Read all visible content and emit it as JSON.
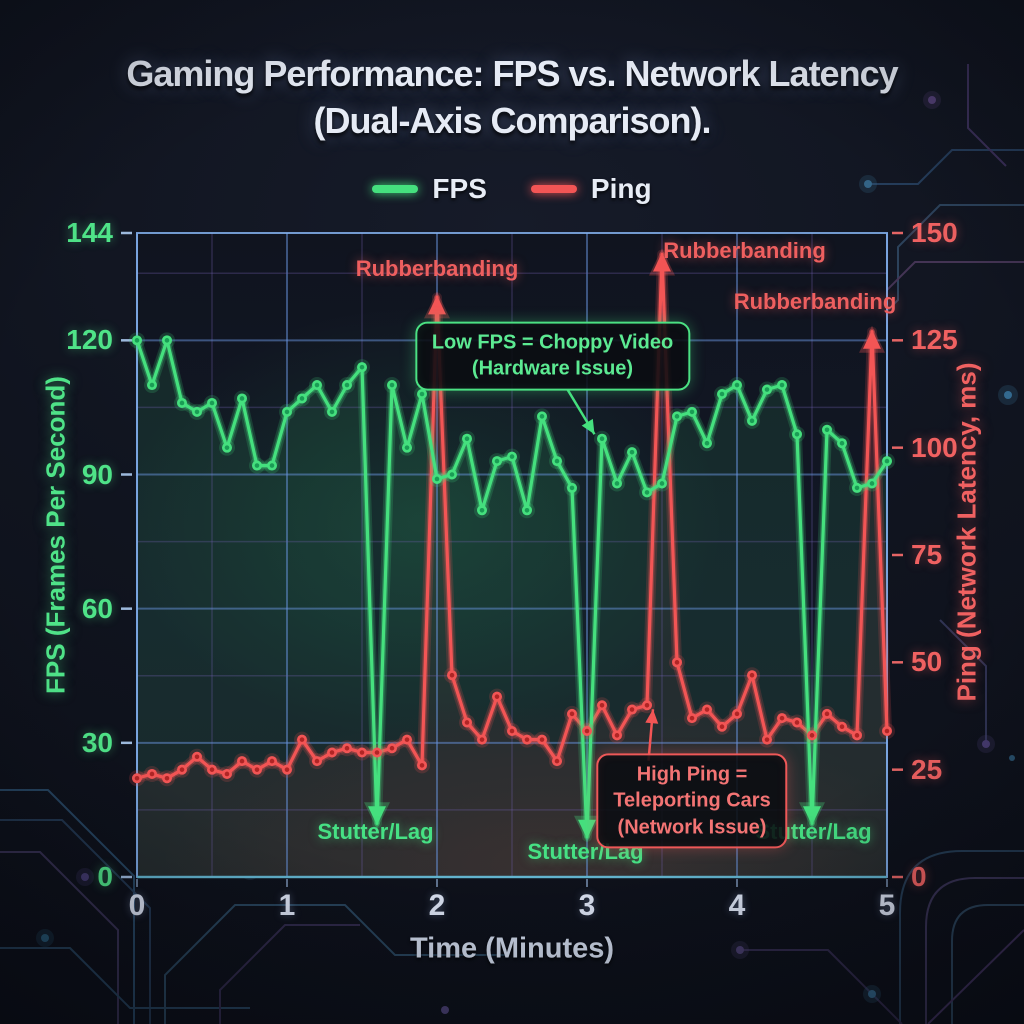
{
  "title": {
    "line1": "Gaming Performance: FPS vs. Network Latency",
    "line2": "(Dual-Axis Comparison)."
  },
  "legend": [
    {
      "label": "FPS",
      "color": "#45e07e"
    },
    {
      "label": "Ping",
      "color": "#f25555"
    }
  ],
  "colors": {
    "fps": "#45e07e",
    "fps_dark": "#1a9d55",
    "ping": "#f25555",
    "ping_dark": "#b02525",
    "grid_major": "rgba(104,148,222,0.50)",
    "grid_minor": "rgba(112,96,176,0.30)",
    "frame": "rgba(132,178,238,0.85)",
    "frame_bottom": "rgba(96,182,205,0.9)",
    "left_tick_dash": "#9db9dd",
    "right_tick_dash": "#e56565"
  },
  "chart_data": {
    "type": "line",
    "dual_axis": true,
    "title": "Gaming Performance: FPS vs. Network Latency (Dual-Axis Comparison).",
    "xlabel": "Time (Minutes)",
    "x_range": [
      0,
      5
    ],
    "x_ticks": [
      0,
      1,
      2,
      3,
      4,
      5
    ],
    "grid": {
      "x_minor_step": 0.5,
      "y_minor_step_left": 15
    },
    "left_axis": {
      "label": "FPS (Frames Per Second)",
      "ticks": [
        0,
        30,
        60,
        90,
        120,
        144
      ],
      "range": [
        0,
        144
      ],
      "color": "#45e07e"
    },
    "right_axis": {
      "label": "Ping (Network Latency, ms)",
      "ticks": [
        0,
        25,
        50,
        75,
        100,
        125,
        150
      ],
      "range": [
        0,
        150
      ],
      "color": "#f25555"
    },
    "x": [
      0,
      0.1,
      0.2,
      0.3,
      0.4,
      0.5,
      0.6,
      0.7,
      0.8,
      0.9,
      1,
      1.1,
      1.2,
      1.3,
      1.4,
      1.5,
      1.6,
      1.7,
      1.8,
      1.9,
      2,
      2.1,
      2.2,
      2.3,
      2.4,
      2.5,
      2.6,
      2.7,
      2.8,
      2.9,
      3,
      3.1,
      3.2,
      3.3,
      3.4,
      3.5,
      3.6,
      3.7,
      3.8,
      3.9,
      4,
      4.1,
      4.2,
      4.3,
      4.4,
      4.5,
      4.6,
      4.7,
      4.8,
      4.9,
      5
    ],
    "series": [
      {
        "name": "FPS",
        "axis": "left",
        "color": "#45e07e",
        "values": [
          120,
          110,
          120,
          106,
          104,
          106,
          96,
          107,
          92,
          92,
          104,
          107,
          110,
          104,
          110,
          114,
          12,
          110,
          96,
          108,
          89,
          90,
          98,
          82,
          93,
          94,
          82,
          103,
          93,
          87,
          9,
          98,
          88,
          95,
          86,
          88,
          103,
          104,
          97,
          108,
          110,
          102,
          109,
          110,
          99,
          12,
          100,
          97,
          87,
          88,
          93
        ],
        "arrows": [
          {
            "x": 1.6,
            "dir": "down"
          },
          {
            "x": 3,
            "dir": "down"
          },
          {
            "x": 4.5,
            "dir": "down"
          }
        ]
      },
      {
        "name": "Ping",
        "axis": "right",
        "color": "#f25555",
        "values": [
          23,
          24,
          23,
          25,
          28,
          25,
          24,
          27,
          25,
          27,
          25,
          32,
          27,
          29,
          30,
          29,
          29,
          30,
          32,
          26,
          135,
          47,
          36,
          32,
          42,
          34,
          32,
          32,
          27,
          38,
          34,
          40,
          33,
          39,
          40,
          145,
          50,
          37,
          39,
          35,
          38,
          47,
          32,
          37,
          36,
          33,
          38,
          35,
          33,
          127,
          34
        ],
        "arrows": [
          {
            "x": 2,
            "dir": "up"
          },
          {
            "x": 3.5,
            "dir": "up"
          },
          {
            "x": 4.9,
            "dir": "up"
          }
        ]
      }
    ],
    "annotations": [
      {
        "kind": "label",
        "text": "Rubberbanding",
        "palette": "ping",
        "x": 2.0,
        "y": 136
      },
      {
        "kind": "label",
        "text": "Rubberbanding",
        "palette": "ping",
        "x": 4.05,
        "y": 140
      },
      {
        "kind": "label",
        "text": "Rubberbanding",
        "palette": "ping",
        "x": 4.52,
        "y": 128.5
      },
      {
        "kind": "label",
        "text": "Stutter/Lag",
        "palette": "fps",
        "x": 1.59,
        "y": 10
      },
      {
        "kind": "label",
        "text": "Stutter/Lag",
        "palette": "fps",
        "x": 2.99,
        "y": 5.5
      },
      {
        "kind": "label",
        "text": "Stutter/Lag",
        "palette": "fps",
        "x": 4.51,
        "y": 10
      },
      {
        "kind": "box",
        "lines": [
          "Low FPS = Choppy Video",
          "(Hardware Issue)"
        ],
        "palette": "fps",
        "x": 2.77,
        "y": 116.5,
        "arrow": {
          "from": [
            2.87,
            109
          ],
          "to": [
            3.05,
            99
          ]
        }
      },
      {
        "kind": "box",
        "lines": [
          "High Ping =",
          "Teleporting Cars",
          "(Network Issue)"
        ],
        "palette": "ping",
        "x": 3.7,
        "y": 17,
        "arrow": {
          "from": [
            3.41,
            26
          ],
          "to": [
            3.44,
            37.5
          ]
        }
      }
    ]
  }
}
